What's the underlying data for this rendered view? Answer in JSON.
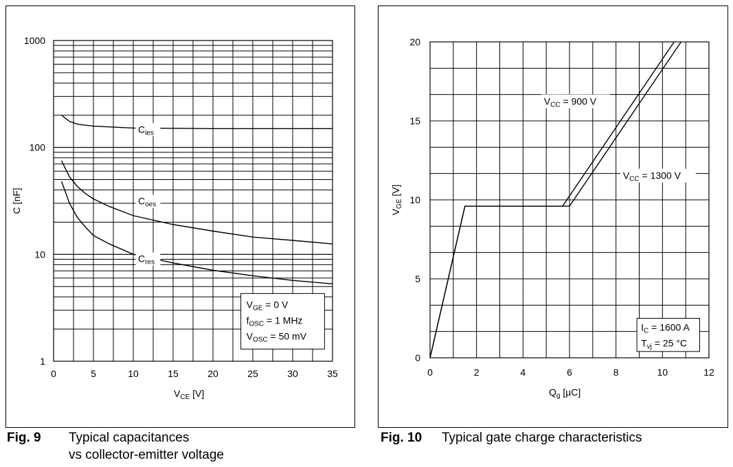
{
  "figures": [
    {
      "caption_number": "Fig. 9",
      "caption_line1": "Typical capacitances",
      "caption_line2": "vs collector-emitter voltage"
    },
    {
      "caption_number": "Fig. 10",
      "caption_line1": "Typical gate charge characteristics"
    }
  ],
  "chart_data": [
    {
      "type": "line",
      "xscale": "linear",
      "yscale": "log",
      "xlabel": "VCE [V]",
      "xlabel_main": "V",
      "xlabel_sub": "CE",
      "xlabel_unit": "[V]",
      "ylabel": "C [nF]",
      "xlim": [
        0,
        35
      ],
      "ylim": [
        1,
        1000
      ],
      "xticks": [
        "0",
        "5",
        "10",
        "15",
        "20",
        "25",
        "30",
        "35"
      ],
      "yticks": [
        "1",
        "10",
        "100",
        "1000"
      ],
      "grid": true,
      "series": [
        {
          "name": "Cies",
          "label_main": "C",
          "label_sub": "ies",
          "x": [
            1,
            2,
            3,
            5,
            10,
            15,
            20,
            25,
            30,
            35
          ],
          "y": [
            200,
            175,
            165,
            158,
            152,
            151,
            150,
            150,
            150,
            150
          ]
        },
        {
          "name": "Coes",
          "label_main": "C",
          "label_sub": "oes",
          "x": [
            1,
            1.5,
            2,
            3,
            4,
            5,
            7,
            10,
            15,
            20,
            25,
            30,
            35
          ],
          "y": [
            75,
            63,
            53,
            43,
            37,
            33,
            28,
            23,
            19,
            16.5,
            14.5,
            13.5,
            12.5
          ]
        },
        {
          "name": "Cres",
          "label_main": "C",
          "label_sub": "res",
          "x": [
            1,
            1.5,
            2,
            3,
            4,
            5,
            7,
            10,
            15,
            20,
            25,
            30,
            35
          ],
          "y": [
            48,
            38,
            30,
            22,
            18,
            15,
            12.5,
            10,
            8.3,
            7.1,
            6.3,
            5.7,
            5.3
          ]
        }
      ],
      "annotations": [
        {
          "main": "V",
          "sub": "GE",
          "rest": " = 0 V"
        },
        {
          "main": "f",
          "sub": "OSC",
          "rest": " = 1 MHz"
        },
        {
          "main": "V",
          "sub": "OSC",
          "rest": " = 50 mV"
        }
      ],
      "legend_position": "bottom-right"
    },
    {
      "type": "line",
      "xscale": "linear",
      "yscale": "linear",
      "xlabel": "Qg [µC]",
      "xlabel_main": "Q",
      "xlabel_sub": "g",
      "xlabel_unit": "[µC]",
      "ylabel": "VGE [V]",
      "ylabel_main": "V",
      "ylabel_sub": "GE",
      "ylabel_unit": "[V]",
      "xlim": [
        0,
        12
      ],
      "ylim": [
        0,
        20
      ],
      "xticks": [
        "0",
        "2",
        "4",
        "6",
        "8",
        "10",
        "12"
      ],
      "yticks": [
        "0",
        "5",
        "10",
        "15",
        "20"
      ],
      "grid": true,
      "series": [
        {
          "name": "VCC = 900 V",
          "label_main": "V",
          "label_sub": "CC",
          "label_rest": " = 900 V",
          "x": [
            0,
            1.5,
            5.7,
            10.5
          ],
          "y": [
            0,
            9.6,
            9.6,
            20
          ]
        },
        {
          "name": "VCC = 1300 V",
          "label_main": "V",
          "label_sub": "CC",
          "label_rest": " = 1300 V",
          "x": [
            0,
            1.5,
            6.0,
            10.8
          ],
          "y": [
            0,
            9.6,
            9.6,
            20
          ]
        }
      ],
      "annotations": [
        {
          "main": "I",
          "sub": "C",
          "rest": " = 1600 A"
        },
        {
          "main": "T",
          "sub": "vj",
          "rest": " = 25 °C"
        }
      ],
      "legend_position": "bottom-right"
    }
  ]
}
